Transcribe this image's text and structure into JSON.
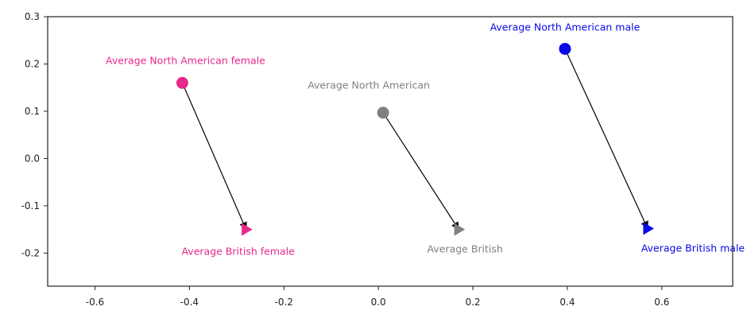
{
  "chart_data": {
    "type": "scatter",
    "title": "",
    "xlabel": "",
    "ylabel": "",
    "xlim": [
      -0.7,
      0.75
    ],
    "ylim": [
      -0.27,
      0.3
    ],
    "xticks": [
      -0.6,
      -0.4,
      -0.2,
      0.0,
      0.2,
      0.4,
      0.6
    ],
    "xtick_labels": [
      "-0.6",
      "-0.4",
      "-0.2",
      "0.0",
      "0.2",
      "0.4",
      "0.6"
    ],
    "yticks": [
      -0.2,
      -0.1,
      0.0,
      0.1,
      0.2,
      0.3
    ],
    "ytick_labels": [
      "-0.2",
      "-0.1",
      "0.0",
      "0.1",
      "0.2",
      "0.3"
    ],
    "grid": false,
    "series": [
      {
        "color": "#e8288a",
        "points": [
          {
            "x": -0.415,
            "y": 0.16,
            "marker": "circle",
            "label": "Average North American female"
          },
          {
            "x": -0.28,
            "y": -0.15,
            "marker": "triangle-right",
            "label": "Average British female"
          }
        ]
      },
      {
        "color": "#808080",
        "points": [
          {
            "x": 0.01,
            "y": 0.097,
            "marker": "circle",
            "label": "Average North American"
          },
          {
            "x": 0.17,
            "y": -0.15,
            "marker": "triangle-right",
            "label": "Average British"
          }
        ]
      },
      {
        "color": "#0a0ae6",
        "points": [
          {
            "x": 0.395,
            "y": 0.232,
            "marker": "circle",
            "label": "Average North American male"
          },
          {
            "x": 0.57,
            "y": -0.148,
            "marker": "triangle-right",
            "label": "Average British male"
          }
        ]
      }
    ],
    "arrows": [
      {
        "from": [
          -0.415,
          0.16
        ],
        "to": [
          -0.28,
          -0.15
        ],
        "color": "#000000"
      },
      {
        "from": [
          0.01,
          0.097
        ],
        "to": [
          0.17,
          -0.15
        ],
        "color": "#000000"
      },
      {
        "from": [
          0.395,
          0.232
        ],
        "to": [
          0.57,
          -0.148
        ],
        "color": "#000000"
      }
    ]
  }
}
